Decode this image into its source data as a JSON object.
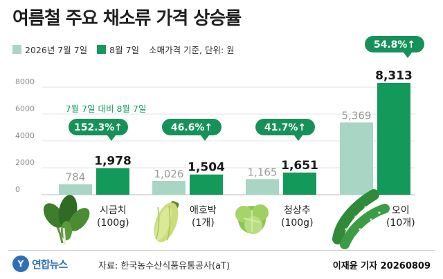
{
  "title": "여름철 주요 채소류 가격 상승률",
  "legend": {
    "date1": "2026년 7월 7일",
    "date2": "8월 7일",
    "basis": "소매가격 기준, 단위: 원"
  },
  "compare_note": "7월 7일 대비 8월 7일",
  "colors": {
    "light": "#a9d6c4",
    "dark": "#139a5b",
    "bubble": "#17915a"
  },
  "chart_data": {
    "type": "bar",
    "title": "여름철 주요 채소류 가격 상승률",
    "categories": [
      "시금치",
      "애호박",
      "청상추",
      "오이"
    ],
    "units": [
      "(100g)",
      "(1개)",
      "(100g)",
      "(10개)"
    ],
    "series": [
      {
        "name": "2026년 7월 7일",
        "values": [
          784,
          1026,
          1165,
          5369
        ],
        "labels": [
          "784",
          "1,026",
          "1,165",
          "5,369"
        ]
      },
      {
        "name": "8월 7일",
        "values": [
          1978,
          1504,
          1651,
          8313
        ],
        "labels": [
          "1,978",
          "1,504",
          "1,651",
          "8,313"
        ]
      }
    ],
    "changes": [
      "152.3%↑",
      "46.6%↑",
      "41.7%↑",
      "54.8%↑"
    ],
    "yticks": [
      "0",
      "2000",
      "4000",
      "6000",
      "8000"
    ],
    "ytick_values": [
      0,
      2000,
      4000,
      6000,
      8000
    ],
    "ylim": [
      0,
      8313
    ],
    "grid": true,
    "icons": [
      "spinach-icon",
      "zucchini-icon",
      "lettuce-icon",
      "cucumber-icon"
    ]
  },
  "footer": {
    "logo_mark": "Y",
    "logo_text": "연합뉴스",
    "source": "자료: 한국농수산식품유통공사(aT)",
    "credit": "이재윤 기자 20260809"
  }
}
